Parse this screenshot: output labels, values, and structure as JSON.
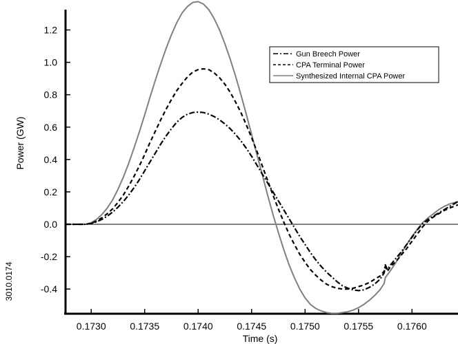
{
  "chart_data": {
    "type": "line",
    "title": "",
    "xlabel": "Time  (s)",
    "ylabel": "Power (GW)",
    "figure_id": "3010.0174",
    "xlim": [
      0.17276,
      0.17643
    ],
    "ylim": [
      -0.5525,
      1.385
    ],
    "zero_line": true,
    "grid": false,
    "legend_position": "top-right",
    "x_ticks": [
      0.173,
      0.1735,
      0.174,
      0.1745,
      0.175,
      0.1755,
      0.176
    ],
    "x_tick_labels": [
      "0.1730",
      "0.1735",
      "0.1740",
      "0.1745",
      "0.1750",
      "0.1755",
      "0.1760"
    ],
    "y_ticks": [
      -0.4,
      -0.2,
      0.0,
      0.2,
      0.4,
      0.6,
      0.8,
      1.0,
      1.2
    ],
    "y_tick_labels": [
      "-0.4",
      "-0.2",
      "0.0",
      "0.2",
      "0.4",
      "0.6",
      "0.8",
      "1.0",
      "1.2"
    ],
    "series": [
      {
        "name": "Gun Breech Power",
        "style": "dash-dot",
        "color": "#000000",
        "x": [
          0.17276,
          0.17295,
          0.173,
          0.17305,
          0.1731,
          0.17315,
          0.1732,
          0.17325,
          0.1733,
          0.17335,
          0.1734,
          0.17345,
          0.1735,
          0.17355,
          0.1736,
          0.17365,
          0.1737,
          0.17375,
          0.1738,
          0.17385,
          0.1739,
          0.17395,
          0.174,
          0.17405,
          0.1741,
          0.17415,
          0.1742,
          0.17425,
          0.1743,
          0.17435,
          0.1744,
          0.17445,
          0.1745,
          0.17455,
          0.1746,
          0.17465,
          0.1747,
          0.17475,
          0.1748,
          0.17485,
          0.1749,
          0.17495,
          0.175,
          0.17505,
          0.1751,
          0.17515,
          0.1752,
          0.17525,
          0.1753,
          0.17535,
          0.1754,
          0.17545,
          0.1755,
          0.17555,
          0.1756,
          0.17565,
          0.1757,
          0.17574,
          0.17575,
          0.17577,
          0.1758,
          0.17585,
          0.1759,
          0.17595,
          0.176,
          0.17605,
          0.1761,
          0.17615,
          0.1762,
          0.17625,
          0.1763,
          0.17635,
          0.17643
        ],
        "y": [
          0.0,
          0.0,
          0.005,
          0.015,
          0.03,
          0.05,
          0.075,
          0.105,
          0.14,
          0.18,
          0.225,
          0.275,
          0.33,
          0.385,
          0.44,
          0.495,
          0.545,
          0.59,
          0.63,
          0.66,
          0.68,
          0.69,
          0.693,
          0.69,
          0.68,
          0.665,
          0.645,
          0.62,
          0.59,
          0.555,
          0.515,
          0.47,
          0.42,
          0.365,
          0.31,
          0.255,
          0.2,
          0.145,
          0.09,
          0.035,
          -0.02,
          -0.075,
          -0.125,
          -0.175,
          -0.22,
          -0.26,
          -0.295,
          -0.325,
          -0.355,
          -0.38,
          -0.395,
          -0.405,
          -0.41,
          -0.405,
          -0.39,
          -0.37,
          -0.34,
          -0.3,
          -0.25,
          -0.28,
          -0.25,
          -0.21,
          -0.17,
          -0.125,
          -0.08,
          -0.035,
          0.005,
          0.03,
          0.05,
          0.07,
          0.09,
          0.11,
          0.14
        ]
      },
      {
        "name": "CPA Terminal Power",
        "style": "dashed",
        "color": "#000000",
        "x": [
          0.17276,
          0.17295,
          0.173,
          0.17305,
          0.1731,
          0.17315,
          0.1732,
          0.17325,
          0.1733,
          0.17335,
          0.1734,
          0.17345,
          0.1735,
          0.17355,
          0.1736,
          0.17365,
          0.1737,
          0.17375,
          0.1738,
          0.17385,
          0.1739,
          0.17395,
          0.174,
          0.17405,
          0.1741,
          0.17415,
          0.1742,
          0.17425,
          0.1743,
          0.17435,
          0.1744,
          0.17445,
          0.1745,
          0.17455,
          0.1746,
          0.17465,
          0.1747,
          0.17475,
          0.1748,
          0.17485,
          0.1749,
          0.17495,
          0.175,
          0.17505,
          0.1751,
          0.17515,
          0.1752,
          0.17525,
          0.1753,
          0.17535,
          0.1754,
          0.17545,
          0.1755,
          0.17555,
          0.1756,
          0.17565,
          0.1757,
          0.17574,
          0.17575,
          0.17577,
          0.1758,
          0.17585,
          0.1759,
          0.17595,
          0.176,
          0.17605,
          0.1761,
          0.17615,
          0.1762,
          0.17625,
          0.1763,
          0.17635,
          0.17643
        ],
        "y": [
          0.0,
          0.0,
          0.005,
          0.02,
          0.04,
          0.065,
          0.095,
          0.135,
          0.18,
          0.235,
          0.295,
          0.36,
          0.43,
          0.505,
          0.575,
          0.645,
          0.71,
          0.77,
          0.825,
          0.87,
          0.91,
          0.94,
          0.955,
          0.96,
          0.955,
          0.935,
          0.905,
          0.865,
          0.815,
          0.755,
          0.69,
          0.615,
          0.535,
          0.45,
          0.36,
          0.27,
          0.18,
          0.095,
          0.015,
          -0.06,
          -0.125,
          -0.185,
          -0.235,
          -0.28,
          -0.315,
          -0.345,
          -0.37,
          -0.385,
          -0.395,
          -0.4,
          -0.4,
          -0.395,
          -0.385,
          -0.375,
          -0.36,
          -0.34,
          -0.32,
          -0.29,
          -0.26,
          -0.29,
          -0.26,
          -0.23,
          -0.19,
          -0.15,
          -0.105,
          -0.06,
          -0.015,
          0.02,
          0.045,
          0.065,
          0.085,
          0.1,
          0.12
        ]
      },
      {
        "name": "Synthesized Internal CPA Power",
        "style": "solid",
        "color": "#7f7f7f",
        "x": [
          0.17276,
          0.17295,
          0.173,
          0.17305,
          0.1731,
          0.17315,
          0.1732,
          0.17325,
          0.1733,
          0.17335,
          0.1734,
          0.17345,
          0.1735,
          0.17355,
          0.1736,
          0.17365,
          0.1737,
          0.17375,
          0.1738,
          0.17385,
          0.1739,
          0.17395,
          0.174,
          0.17405,
          0.1741,
          0.17415,
          0.1742,
          0.17425,
          0.1743,
          0.17435,
          0.1744,
          0.17445,
          0.1745,
          0.17455,
          0.1746,
          0.17465,
          0.1747,
          0.17475,
          0.1748,
          0.17485,
          0.1749,
          0.17495,
          0.175,
          0.17505,
          0.1751,
          0.17515,
          0.1752,
          0.17525,
          0.1753,
          0.17535,
          0.1754,
          0.17545,
          0.1755,
          0.17555,
          0.1756,
          0.17565,
          0.1757,
          0.17574,
          0.17575,
          0.1758,
          0.17585,
          0.1759,
          0.17595,
          0.176,
          0.17605,
          0.1761,
          0.17615,
          0.1762,
          0.17625,
          0.1763,
          0.17635,
          0.17643
        ],
        "y": [
          0.0,
          0.0,
          0.01,
          0.03,
          0.06,
          0.1,
          0.15,
          0.215,
          0.29,
          0.375,
          0.47,
          0.57,
          0.675,
          0.785,
          0.89,
          0.99,
          1.085,
          1.17,
          1.245,
          1.305,
          1.345,
          1.37,
          1.375,
          1.36,
          1.325,
          1.27,
          1.2,
          1.115,
          1.02,
          0.915,
          0.8,
          0.68,
          0.555,
          0.43,
          0.305,
          0.18,
          0.06,
          -0.05,
          -0.155,
          -0.25,
          -0.33,
          -0.4,
          -0.455,
          -0.495,
          -0.52,
          -0.535,
          -0.545,
          -0.55,
          -0.55,
          -0.545,
          -0.54,
          -0.53,
          -0.515,
          -0.495,
          -0.47,
          -0.44,
          -0.405,
          -0.365,
          -0.33,
          -0.285,
          -0.235,
          -0.18,
          -0.125,
          -0.075,
          -0.03,
          0.01,
          0.04,
          0.065,
          0.09,
          0.11,
          0.125,
          0.14
        ]
      }
    ]
  }
}
